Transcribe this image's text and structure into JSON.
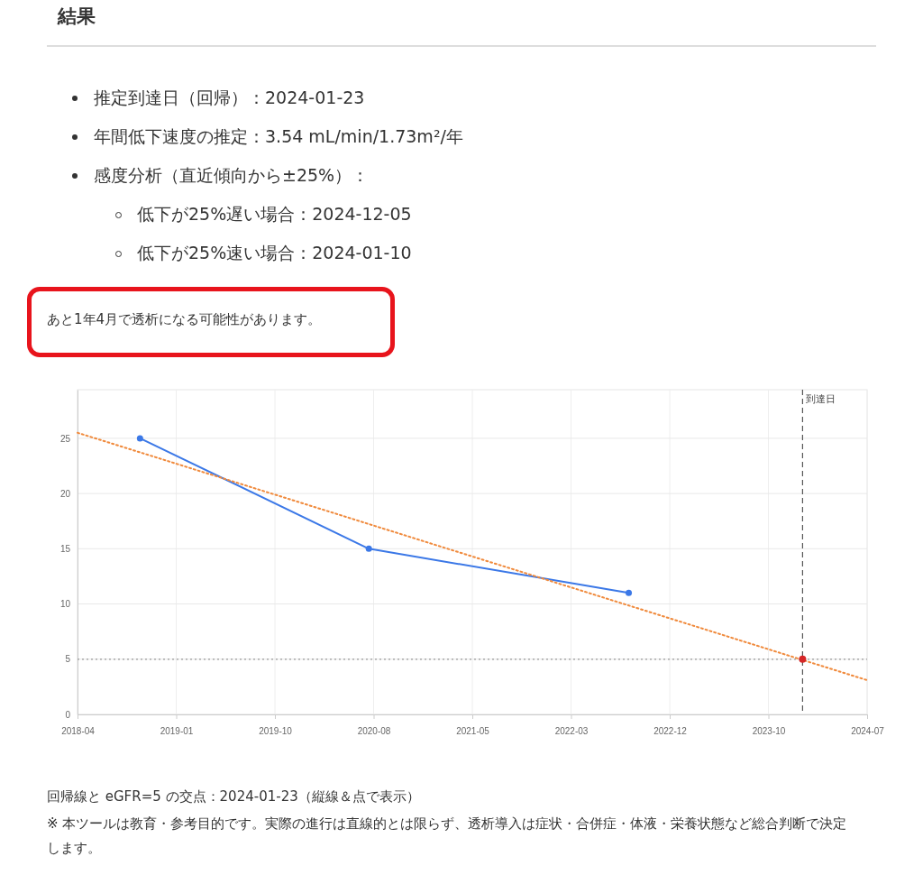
{
  "chart_data": {
    "type": "line",
    "title": "結果",
    "annotations": [
      "推定到達日（回帰）：2024-01-23",
      "年間低下速度の推定：3.54 mL/min/1.73m²/年",
      "感度分析（直近傾向から±25%）：",
      "低下が25%遅い場合：2024-12-05",
      "低下が25%速い場合：2024-01-10",
      "あと1年4月で透析になる可能性があります。",
      "回帰線と eGFR=5 の交点：2024-01-23（縦線＆点で表示）",
      "※ 本ツールは教育・参考目的です。実際の進行は直線的とは限らず、透析導入は症状・合併症・体液・栄養状態など総合判断で決定します。"
    ],
    "series": [
      {
        "color": "#3b78e7",
        "marker": "circle",
        "x": [
          "2018-10-01",
          "2020-08-01",
          "2022-09-01"
        ],
        "values": [
          25,
          15,
          11
        ]
      },
      {
        "color": "#f08a3c",
        "line_style": "dotted",
        "marker": "none",
        "x": [
          "2018-04-01",
          "2024-07-30"
        ],
        "values": [
          25.5,
          3.1
        ]
      },
      {
        "type": "scatter",
        "color": "#d62728",
        "marker": "circle",
        "x": [
          "2024-01-23"
        ],
        "values": [
          5
        ]
      }
    ],
    "xlim": [
      "2018-04-01",
      "2024-07-30"
    ],
    "xticks": [
      {
        "value": "2018-04-01",
        "label": "2018-04"
      },
      {
        "value": "2019-01-15",
        "label": "2019-01"
      },
      {
        "value": "2019-10-31",
        "label": "2019-10"
      },
      {
        "value": "2020-08-15",
        "label": "2020-08"
      },
      {
        "value": "2021-05-31",
        "label": "2021-05"
      },
      {
        "value": "2022-03-16",
        "label": "2022-03"
      },
      {
        "value": "2022-12-30",
        "label": "2022-12"
      },
      {
        "value": "2023-10-15",
        "label": "2023-10"
      },
      {
        "value": "2024-07-30",
        "label": "2024-07"
      }
    ],
    "ylim": [
      0,
      29.4
    ],
    "yticks": [
      0,
      5,
      10,
      15,
      20,
      25
    ],
    "grid": true,
    "ref_lines": [
      {
        "axis": "x",
        "value": "2024-01-23",
        "label": "到達日",
        "color": "#555555",
        "line_style": "dashed"
      },
      {
        "axis": "y",
        "value": 5,
        "color": "#999999",
        "line_style": "dotted"
      }
    ]
  }
}
